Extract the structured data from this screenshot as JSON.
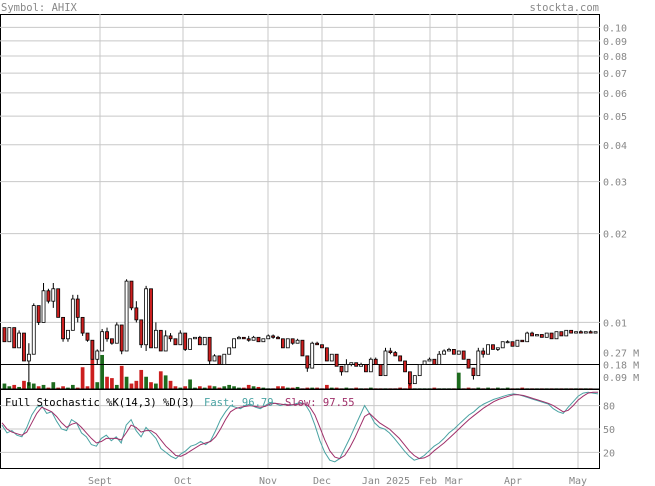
{
  "header": {
    "symbol_label": "Symbol: AHIX",
    "site": "stockta.com"
  },
  "chart_data": {
    "type": "candlestick",
    "symbol": "AHIX",
    "price_axis": {
      "scale": "log",
      "ylim": [
        0.0059,
        0.111
      ],
      "ticks": [
        "0.10",
        "0.09",
        "0.08",
        "0.07",
        "0.06",
        "0.05",
        "0.04",
        "0.03",
        "0.02",
        "0.01"
      ],
      "reference_line": 0.0072
    },
    "volume_axis": {
      "ylim": [
        0,
        0.36
      ],
      "ticks": [
        "0.27 M",
        "0.18 M",
        "0.09 M"
      ]
    },
    "x_axis": {
      "labels": [
        "Sept",
        "Oct",
        "Nov",
        "Dec",
        "Jan 2025",
        "Feb",
        "Mar",
        "Apr",
        "May"
      ]
    },
    "candles": [
      [
        0.0096,
        0.0096,
        0.0086,
        0.0086
      ],
      [
        0.0086,
        0.0096,
        0.0086,
        0.0096
      ],
      [
        0.0096,
        0.0096,
        0.0082,
        0.0082
      ],
      [
        0.0082,
        0.0094,
        0.0082,
        0.0092
      ],
      [
        0.0092,
        0.0092,
        0.0074,
        0.0074
      ],
      [
        0.0074,
        0.0085,
        0.0061,
        0.0078
      ],
      [
        0.0078,
        0.0116,
        0.0078,
        0.0114
      ],
      [
        0.0114,
        0.0114,
        0.0098,
        0.01
      ],
      [
        0.01,
        0.0136,
        0.01,
        0.0128
      ],
      [
        0.0128,
        0.013,
        0.0116,
        0.0118
      ],
      [
        0.0118,
        0.0136,
        0.0112,
        0.013
      ],
      [
        0.013,
        0.013,
        0.0104,
        0.0104
      ],
      [
        0.0104,
        0.0104,
        0.0086,
        0.0088
      ],
      [
        0.0088,
        0.0094,
        0.0086,
        0.0094
      ],
      [
        0.0094,
        0.0124,
        0.0094,
        0.012
      ],
      [
        0.012,
        0.0124,
        0.01,
        0.0104
      ],
      [
        0.0104,
        0.0104,
        0.009,
        0.0092
      ],
      [
        0.0092,
        0.0092,
        0.0086,
        0.0087
      ],
      [
        0.0087,
        0.0087,
        0.0075,
        0.0075
      ],
      [
        0.0075,
        0.0081,
        0.0072,
        0.008
      ],
      [
        0.008,
        0.0095,
        0.008,
        0.0093
      ],
      [
        0.0093,
        0.0096,
        0.0086,
        0.0088
      ],
      [
        0.0088,
        0.0088,
        0.0084,
        0.0085
      ],
      [
        0.0085,
        0.01,
        0.0085,
        0.0098
      ],
      [
        0.0098,
        0.0098,
        0.0078,
        0.008
      ],
      [
        0.008,
        0.014,
        0.008,
        0.0138
      ],
      [
        0.0138,
        0.0138,
        0.011,
        0.0112
      ],
      [
        0.0112,
        0.0118,
        0.01,
        0.0102
      ],
      [
        0.0102,
        0.0102,
        0.0082,
        0.0084
      ],
      [
        0.0084,
        0.0133,
        0.008,
        0.013
      ],
      [
        0.013,
        0.013,
        0.0082,
        0.0082
      ],
      [
        0.0082,
        0.01,
        0.0082,
        0.0094
      ],
      [
        0.0094,
        0.0094,
        0.008,
        0.008
      ],
      [
        0.008,
        0.0094,
        0.008,
        0.009
      ],
      [
        0.009,
        0.0092,
        0.0086,
        0.0088
      ],
      [
        0.0088,
        0.0088,
        0.0084,
        0.0084
      ],
      [
        0.0084,
        0.0094,
        0.0084,
        0.0092
      ],
      [
        0.0092,
        0.0092,
        0.008,
        0.0081
      ],
      [
        0.0081,
        0.0088,
        0.0081,
        0.0088
      ],
      [
        0.0088,
        0.0089,
        0.0088,
        0.0089
      ],
      [
        0.0089,
        0.009,
        0.0084,
        0.0084
      ],
      [
        0.0084,
        0.0089,
        0.0084,
        0.0089
      ],
      [
        0.0089,
        0.0089,
        0.0072,
        0.0074
      ],
      [
        0.0074,
        0.0078,
        0.0074,
        0.0077
      ],
      [
        0.0077,
        0.0077,
        0.0072,
        0.0072
      ],
      [
        0.0072,
        0.0078,
        0.0072,
        0.0078
      ],
      [
        0.0078,
        0.0082,
        0.0078,
        0.0082
      ],
      [
        0.0082,
        0.0088,
        0.0082,
        0.0088
      ],
      [
        0.0088,
        0.009,
        0.0088,
        0.0089
      ],
      [
        0.0089,
        0.0089,
        0.0088,
        0.0088
      ],
      [
        0.0088,
        0.009,
        0.0086,
        0.0087
      ],
      [
        0.0087,
        0.009,
        0.0087,
        0.0089
      ],
      [
        0.0089,
        0.0089,
        0.0086,
        0.0086
      ],
      [
        0.0086,
        0.0088,
        0.0086,
        0.0088
      ],
      [
        0.0088,
        0.0091,
        0.0088,
        0.009
      ],
      [
        0.009,
        0.0091,
        0.0088,
        0.0089
      ],
      [
        0.0089,
        0.009,
        0.0088,
        0.0088
      ],
      [
        0.0088,
        0.0088,
        0.0082,
        0.0082
      ],
      [
        0.0082,
        0.0088,
        0.0082,
        0.0088
      ],
      [
        0.0088,
        0.0088,
        0.0084,
        0.0085
      ],
      [
        0.0085,
        0.0088,
        0.0085,
        0.0087
      ],
      [
        0.0087,
        0.0087,
        0.0077,
        0.0077
      ],
      [
        0.0077,
        0.0077,
        0.0068,
        0.007
      ],
      [
        0.007,
        0.0086,
        0.007,
        0.0085
      ],
      [
        0.0085,
        0.0086,
        0.0084,
        0.0084
      ],
      [
        0.0084,
        0.0084,
        0.0082,
        0.0082
      ],
      [
        0.0082,
        0.0082,
        0.0074,
        0.0074
      ],
      [
        0.0074,
        0.0078,
        0.0074,
        0.0078
      ],
      [
        0.0078,
        0.0078,
        0.0071,
        0.0071
      ],
      [
        0.0071,
        0.0071,
        0.0066,
        0.0068
      ],
      [
        0.0068,
        0.0075,
        0.0068,
        0.0072
      ],
      [
        0.0072,
        0.0073,
        0.0071,
        0.0073
      ],
      [
        0.0073,
        0.0073,
        0.0071,
        0.0071
      ],
      [
        0.0071,
        0.0073,
        0.0071,
        0.0072
      ],
      [
        0.0072,
        0.0072,
        0.0068,
        0.0068
      ],
      [
        0.0068,
        0.0076,
        0.0068,
        0.0075
      ],
      [
        0.0075,
        0.0076,
        0.0072,
        0.0072
      ],
      [
        0.0072,
        0.0072,
        0.0066,
        0.0066
      ],
      [
        0.0066,
        0.0082,
        0.0066,
        0.008
      ],
      [
        0.008,
        0.0082,
        0.0078,
        0.0079
      ],
      [
        0.0079,
        0.008,
        0.0077,
        0.0077
      ],
      [
        0.0077,
        0.0077,
        0.0074,
        0.0074
      ],
      [
        0.0074,
        0.0074,
        0.0068,
        0.0068
      ],
      [
        0.0068,
        0.0068,
        0.0061,
        0.0062
      ],
      [
        0.0062,
        0.0066,
        0.0062,
        0.0066
      ],
      [
        0.0066,
        0.0072,
        0.0066,
        0.0072
      ],
      [
        0.0072,
        0.0074,
        0.0072,
        0.0074
      ],
      [
        0.0074,
        0.0076,
        0.0074,
        0.0075
      ],
      [
        0.0075,
        0.0075,
        0.0072,
        0.0072
      ],
      [
        0.0072,
        0.008,
        0.0072,
        0.0078
      ],
      [
        0.0078,
        0.0081,
        0.0078,
        0.008
      ],
      [
        0.008,
        0.0082,
        0.008,
        0.0081
      ],
      [
        0.0081,
        0.0081,
        0.0078,
        0.0078
      ],
      [
        0.0078,
        0.008,
        0.0078,
        0.008
      ],
      [
        0.008,
        0.008,
        0.0075,
        0.0075
      ],
      [
        0.0075,
        0.0075,
        0.007,
        0.007
      ],
      [
        0.007,
        0.007,
        0.0064,
        0.0066
      ],
      [
        0.0066,
        0.0082,
        0.0066,
        0.008
      ],
      [
        0.008,
        0.0082,
        0.0076,
        0.0078
      ],
      [
        0.0078,
        0.0084,
        0.0078,
        0.0084
      ],
      [
        0.0084,
        0.0084,
        0.0081,
        0.0081
      ],
      [
        0.0081,
        0.0082,
        0.008,
        0.0082
      ],
      [
        0.0082,
        0.0086,
        0.0082,
        0.0086
      ],
      [
        0.0086,
        0.0087,
        0.0085,
        0.0086
      ],
      [
        0.0086,
        0.0086,
        0.0083,
        0.0083
      ],
      [
        0.0083,
        0.0087,
        0.0083,
        0.0087
      ],
      [
        0.0087,
        0.0087,
        0.0086,
        0.0086
      ],
      [
        0.0086,
        0.0093,
        0.0086,
        0.0092
      ],
      [
        0.0092,
        0.0093,
        0.009,
        0.009
      ],
      [
        0.009,
        0.0091,
        0.009,
        0.0091
      ],
      [
        0.0091,
        0.0091,
        0.0089,
        0.0089
      ],
      [
        0.0089,
        0.0092,
        0.0089,
        0.0092
      ],
      [
        0.0092,
        0.0092,
        0.0088,
        0.0088
      ],
      [
        0.0088,
        0.0093,
        0.0088,
        0.0093
      ],
      [
        0.0093,
        0.0093,
        0.009,
        0.009
      ],
      [
        0.009,
        0.0094,
        0.009,
        0.0094
      ],
      [
        0.0094,
        0.0094,
        0.0092,
        0.0092
      ],
      [
        0.0092,
        0.0093,
        0.0092,
        0.0093
      ],
      [
        0.0093,
        0.0094,
        0.0092,
        0.0092
      ],
      [
        0.0092,
        0.0093,
        0.0092,
        0.0093
      ],
      [
        0.0093,
        0.0094,
        0.0092,
        0.0092
      ],
      [
        0.0092,
        0.0093,
        0.0092,
        0.0093
      ]
    ],
    "volumes": [
      0.04,
      0.02,
      0.03,
      0.015,
      0.06,
      0.05,
      0.04,
      0.02,
      0.03,
      0.01,
      0.05,
      0.01,
      0.02,
      0.01,
      0.03,
      0.01,
      0.16,
      0.02,
      0.22,
      0.05,
      0.25,
      0.09,
      0.08,
      0.03,
      0.17,
      0.09,
      0.04,
      0.06,
      0.14,
      0.09,
      0.05,
      0.04,
      0.13,
      0.1,
      0.06,
      0.02,
      0.01,
      0.02,
      0.07,
      0.01,
      0.02,
      0.01,
      0.025,
      0.02,
      0.01,
      0.02,
      0.03,
      0.02,
      0.01,
      0.01,
      0.03,
      0.02,
      0.015,
      0.01,
      0.005,
      0.005,
      0.02,
      0.02,
      0.01,
      0.01,
      0.015,
      0.005,
      0.01,
      0.01,
      0.01,
      0.005,
      0.03,
      0.01,
      0.01,
      0.005,
      0.01,
      0.005,
      0.01,
      0.005,
      0.005,
      0.01,
      0.005,
      0.005,
      0.005,
      0.005,
      0.005,
      0.01,
      0.005,
      0.04,
      0.005,
      0.005,
      0.005,
      0.005,
      0.01,
      0.005,
      0.005,
      0.005,
      0.005,
      0.12,
      0.005,
      0.01,
      0.005,
      0.01,
      0.005,
      0.01,
      0.005,
      0.01,
      0.005,
      0.01,
      0.005,
      0.005,
      0.01,
      0.005,
      0.005,
      0.005,
      0.005,
      0.005,
      0.005,
      0.005,
      0.005,
      0.005,
      0.005,
      0.005,
      0.005,
      0.005,
      0.005
    ],
    "volume_up": [
      true,
      true,
      false,
      true,
      false,
      true,
      true,
      false,
      true,
      false,
      true,
      false,
      false,
      true,
      true,
      false,
      false,
      false,
      false,
      true,
      true,
      false,
      false,
      true,
      false,
      true,
      false,
      false,
      false,
      true,
      false,
      true,
      false,
      true,
      false,
      false,
      true,
      false,
      true,
      true,
      false,
      true,
      false,
      true,
      false,
      true,
      true,
      true,
      true,
      false,
      false,
      true,
      false,
      true,
      true,
      false,
      false,
      false,
      true,
      false,
      true,
      false,
      false,
      true,
      false,
      false,
      false,
      true,
      false,
      false,
      true,
      true,
      false,
      true,
      false,
      true,
      false,
      false,
      true,
      false,
      false,
      false,
      false,
      false,
      true,
      true,
      true,
      true,
      false,
      true,
      true,
      true,
      false,
      true,
      false,
      false,
      false,
      true,
      false,
      true,
      false,
      true,
      true,
      true,
      false,
      true,
      false,
      true,
      false,
      true,
      false,
      true,
      false,
      true,
      false,
      true,
      false,
      true,
      false,
      true,
      false
    ],
    "stochastic": {
      "label": "Full Stochastic %K(14,3) %D(3)",
      "fast_label": "Fast: 96.79",
      "slow_label": "Slow: 97.55",
      "fast_value": 96.79,
      "slow_value": 97.55,
      "ylim": [
        0,
        100
      ],
      "ticks": [
        "80",
        "50",
        "20"
      ],
      "fast_color": "#4aa3a3",
      "slow_color": "#a0306a",
      "fast": [
        55,
        45,
        48,
        42,
        40,
        52,
        68,
        78,
        80,
        70,
        72,
        60,
        50,
        48,
        62,
        58,
        45,
        40,
        30,
        28,
        38,
        42,
        35,
        40,
        32,
        55,
        62,
        48,
        40,
        52,
        45,
        38,
        25,
        20,
        15,
        12,
        18,
        22,
        28,
        30,
        34,
        30,
        35,
        48,
        62,
        72,
        80,
        78,
        76,
        80,
        82,
        78,
        76,
        80,
        84,
        83,
        80,
        82,
        80,
        82,
        84,
        82,
        72,
        55,
        35,
        20,
        10,
        8,
        12,
        25,
        38,
        52,
        66,
        80,
        70,
        58,
        52,
        50,
        45,
        38,
        30,
        22,
        15,
        10,
        12,
        16,
        22,
        28,
        32,
        38,
        45,
        50,
        56,
        62,
        68,
        72,
        78,
        82,
        85,
        88,
        90,
        92,
        94,
        95,
        94,
        92,
        90,
        88,
        86,
        84,
        82,
        76,
        72,
        70,
        78,
        85,
        92,
        96,
        97,
        96,
        95
      ],
      "slow": [
        58,
        50,
        46,
        44,
        42,
        46,
        58,
        70,
        78,
        75,
        72,
        66,
        58,
        52,
        56,
        58,
        52,
        45,
        38,
        32,
        34,
        38,
        38,
        38,
        36,
        45,
        55,
        52,
        46,
        48,
        48,
        44,
        36,
        28,
        22,
        16,
        15,
        18,
        22,
        26,
        30,
        32,
        34,
        40,
        50,
        62,
        72,
        76,
        78,
        79,
        80,
        79,
        78,
        79,
        82,
        83,
        82,
        81,
        81,
        81,
        82,
        82,
        78,
        68,
        52,
        36,
        22,
        14,
        12,
        16,
        26,
        38,
        52,
        66,
        70,
        64,
        58,
        54,
        50,
        44,
        38,
        30,
        22,
        16,
        12,
        13,
        16,
        22,
        27,
        32,
        38,
        44,
        50,
        56,
        62,
        67,
        72,
        77,
        81,
        85,
        88,
        90,
        92,
        94,
        94,
        93,
        91,
        89,
        87,
        85,
        83,
        80,
        76,
        72,
        74,
        80,
        87,
        92,
        96,
        97,
        97
      ]
    },
    "colors": {
      "up_fill": "#ffffff",
      "down_fill": "#cc1f1f",
      "candle_outline": "#000000",
      "vol_up": "#1d6b1d",
      "vol_down": "#cc1f1f",
      "grid": "#c8c8c8",
      "axis_text": "#888888"
    }
  }
}
